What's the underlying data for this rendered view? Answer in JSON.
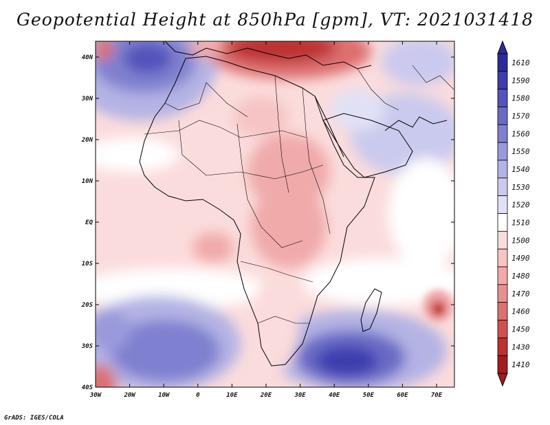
{
  "title": "Geopotential Height at 850hPa [gpm], VT: 2021031418",
  "credit": "GrADS: IGES/COLA",
  "lon_labels": [
    "30W",
    "20W",
    "10W",
    "0",
    "10E",
    "20E",
    "30E",
    "40E",
    "50E",
    "60E",
    "70E"
  ],
  "lat_labels": [
    "40N",
    "30N",
    "20N",
    "10N",
    "EQ",
    "10S",
    "20S",
    "30S",
    "40S"
  ],
  "colorbar": {
    "levels": [
      "1610",
      "1590",
      "1580",
      "1570",
      "1560",
      "1550",
      "1540",
      "1530",
      "1520",
      "1510",
      "1500",
      "1490",
      "1480",
      "1470",
      "1460",
      "1450",
      "1430",
      "1410"
    ],
    "colors": [
      "#2b2b9a",
      "#3d3dae",
      "#5353bb",
      "#6a6ac6",
      "#8080d0",
      "#9a9adb",
      "#b3b3e4",
      "#cacaee",
      "#e1e1f6",
      "#ffffff",
      "#fbdcdc",
      "#f6c4c4",
      "#f0aaaa",
      "#e88f8f",
      "#dd7070",
      "#d05050",
      "#bd3030",
      "#a31c1c"
    ]
  },
  "colors": {
    "deep_high": "#3d3dae",
    "high": "#8080d0",
    "low": "#dd7070",
    "deep_low": "#bd3030",
    "frame": "#000000"
  }
}
